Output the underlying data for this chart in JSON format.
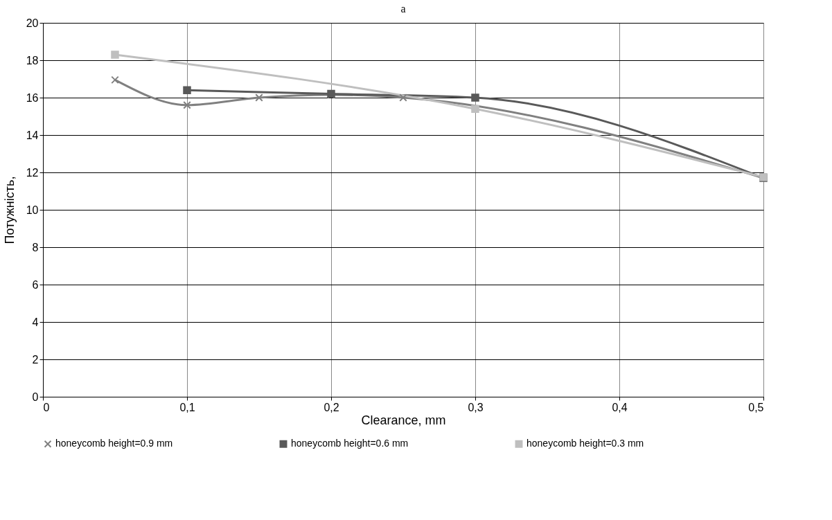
{
  "chart_data": {
    "type": "line",
    "title": "a",
    "xlabel": "Clearance, mm",
    "ylabel": "Потужність,",
    "xlim": [
      0,
      0.5
    ],
    "xticks": [
      0,
      {
        "value": 0.1,
        "label": "0,1"
      },
      {
        "value": 0.2,
        "label": "0,2"
      },
      {
        "value": 0.3,
        "label": "0,3"
      },
      {
        "value": 0.4,
        "label": "0,4"
      },
      {
        "value": 0.5,
        "label": "0,5"
      }
    ],
    "ylim": [
      0,
      20
    ],
    "yticks": [
      0,
      2,
      4,
      6,
      8,
      10,
      12,
      14,
      16,
      18,
      20
    ],
    "grid": true,
    "legend": "bottom",
    "series": [
      {
        "name": "honeycomb height=0.9 mm",
        "color": "#808080",
        "marker": "cross",
        "x": [
          0.05,
          0.1,
          0.15,
          0.2,
          0.25,
          0.5
        ],
        "values": [
          16.95,
          15.6,
          16.0,
          16.15,
          16.0,
          11.7
        ]
      },
      {
        "name": "honeycomb height=0.6 mm",
        "color": "#595959",
        "marker": "square",
        "x": [
          0.1,
          0.2,
          0.3,
          0.5
        ],
        "values": [
          16.4,
          16.2,
          16.0,
          11.7
        ]
      },
      {
        "name": "honeycomb height=0.3 mm",
        "color": "#bfbfbf",
        "marker": "square",
        "x": [
          0.05,
          0.3,
          0.5
        ],
        "values": [
          18.3,
          15.4,
          11.75
        ]
      }
    ]
  }
}
